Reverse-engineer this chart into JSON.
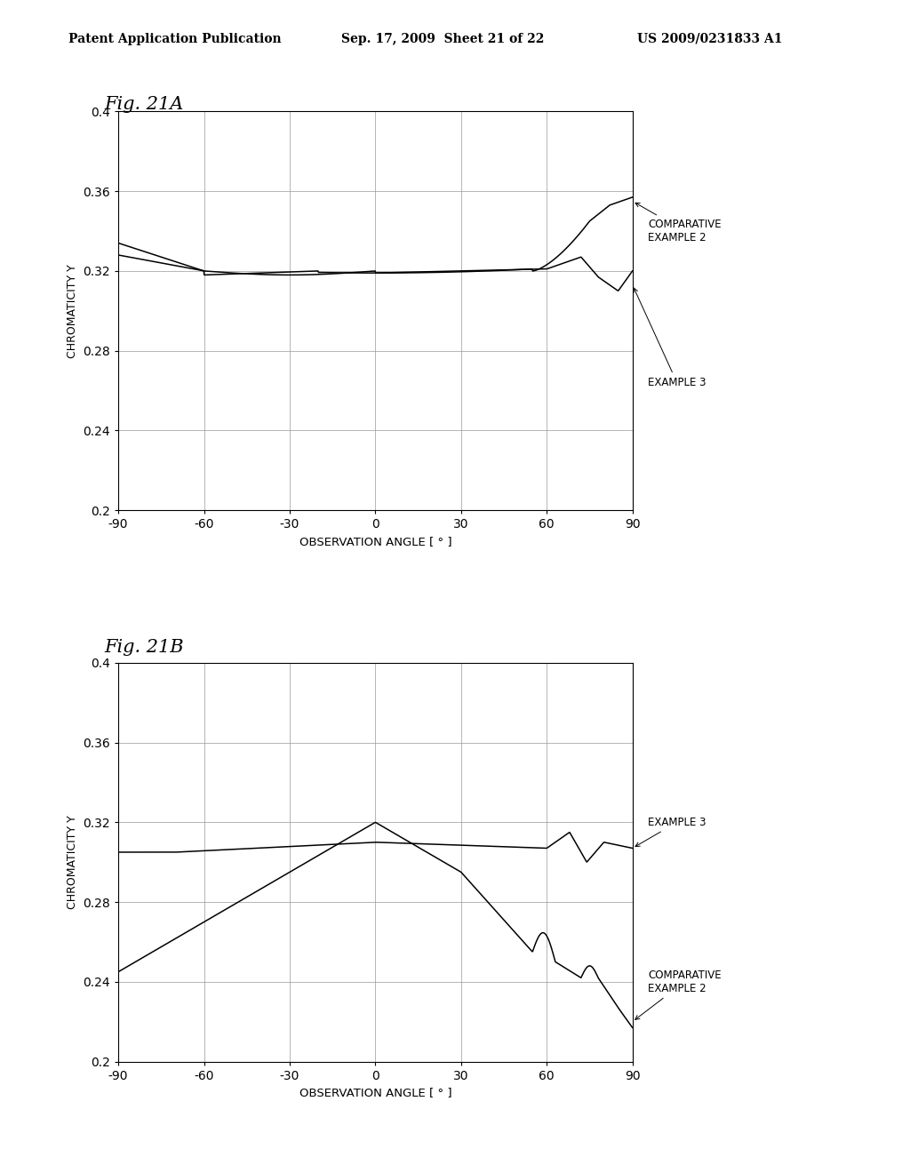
{
  "header_left": "Patent Application Publication",
  "header_center": "Sep. 17, 2009  Sheet 21 of 22",
  "header_right": "US 2009/0231833 A1",
  "fig_a_title": "Fig. 21A",
  "fig_b_title": "Fig. 21B",
  "ylabel": "CHROMATICITY Y",
  "xlabel": "OBSERVATION ANGLE [ ° ]",
  "ylim": [
    0.2,
    0.4
  ],
  "xlim": [
    -90,
    90
  ],
  "yticks": [
    0.2,
    0.24,
    0.28,
    0.32,
    0.36,
    0.4
  ],
  "ytick_labels": [
    "0.2",
    "0.24",
    "0.28",
    "0.32",
    "0.36",
    "0.4"
  ],
  "xticks": [
    -90,
    -60,
    -30,
    0,
    30,
    60,
    90
  ],
  "xtick_labels": [
    "-90",
    "-60",
    "-30",
    "0",
    "30",
    "60",
    "90"
  ],
  "bg_color": "#ffffff",
  "line_color": "#000000"
}
